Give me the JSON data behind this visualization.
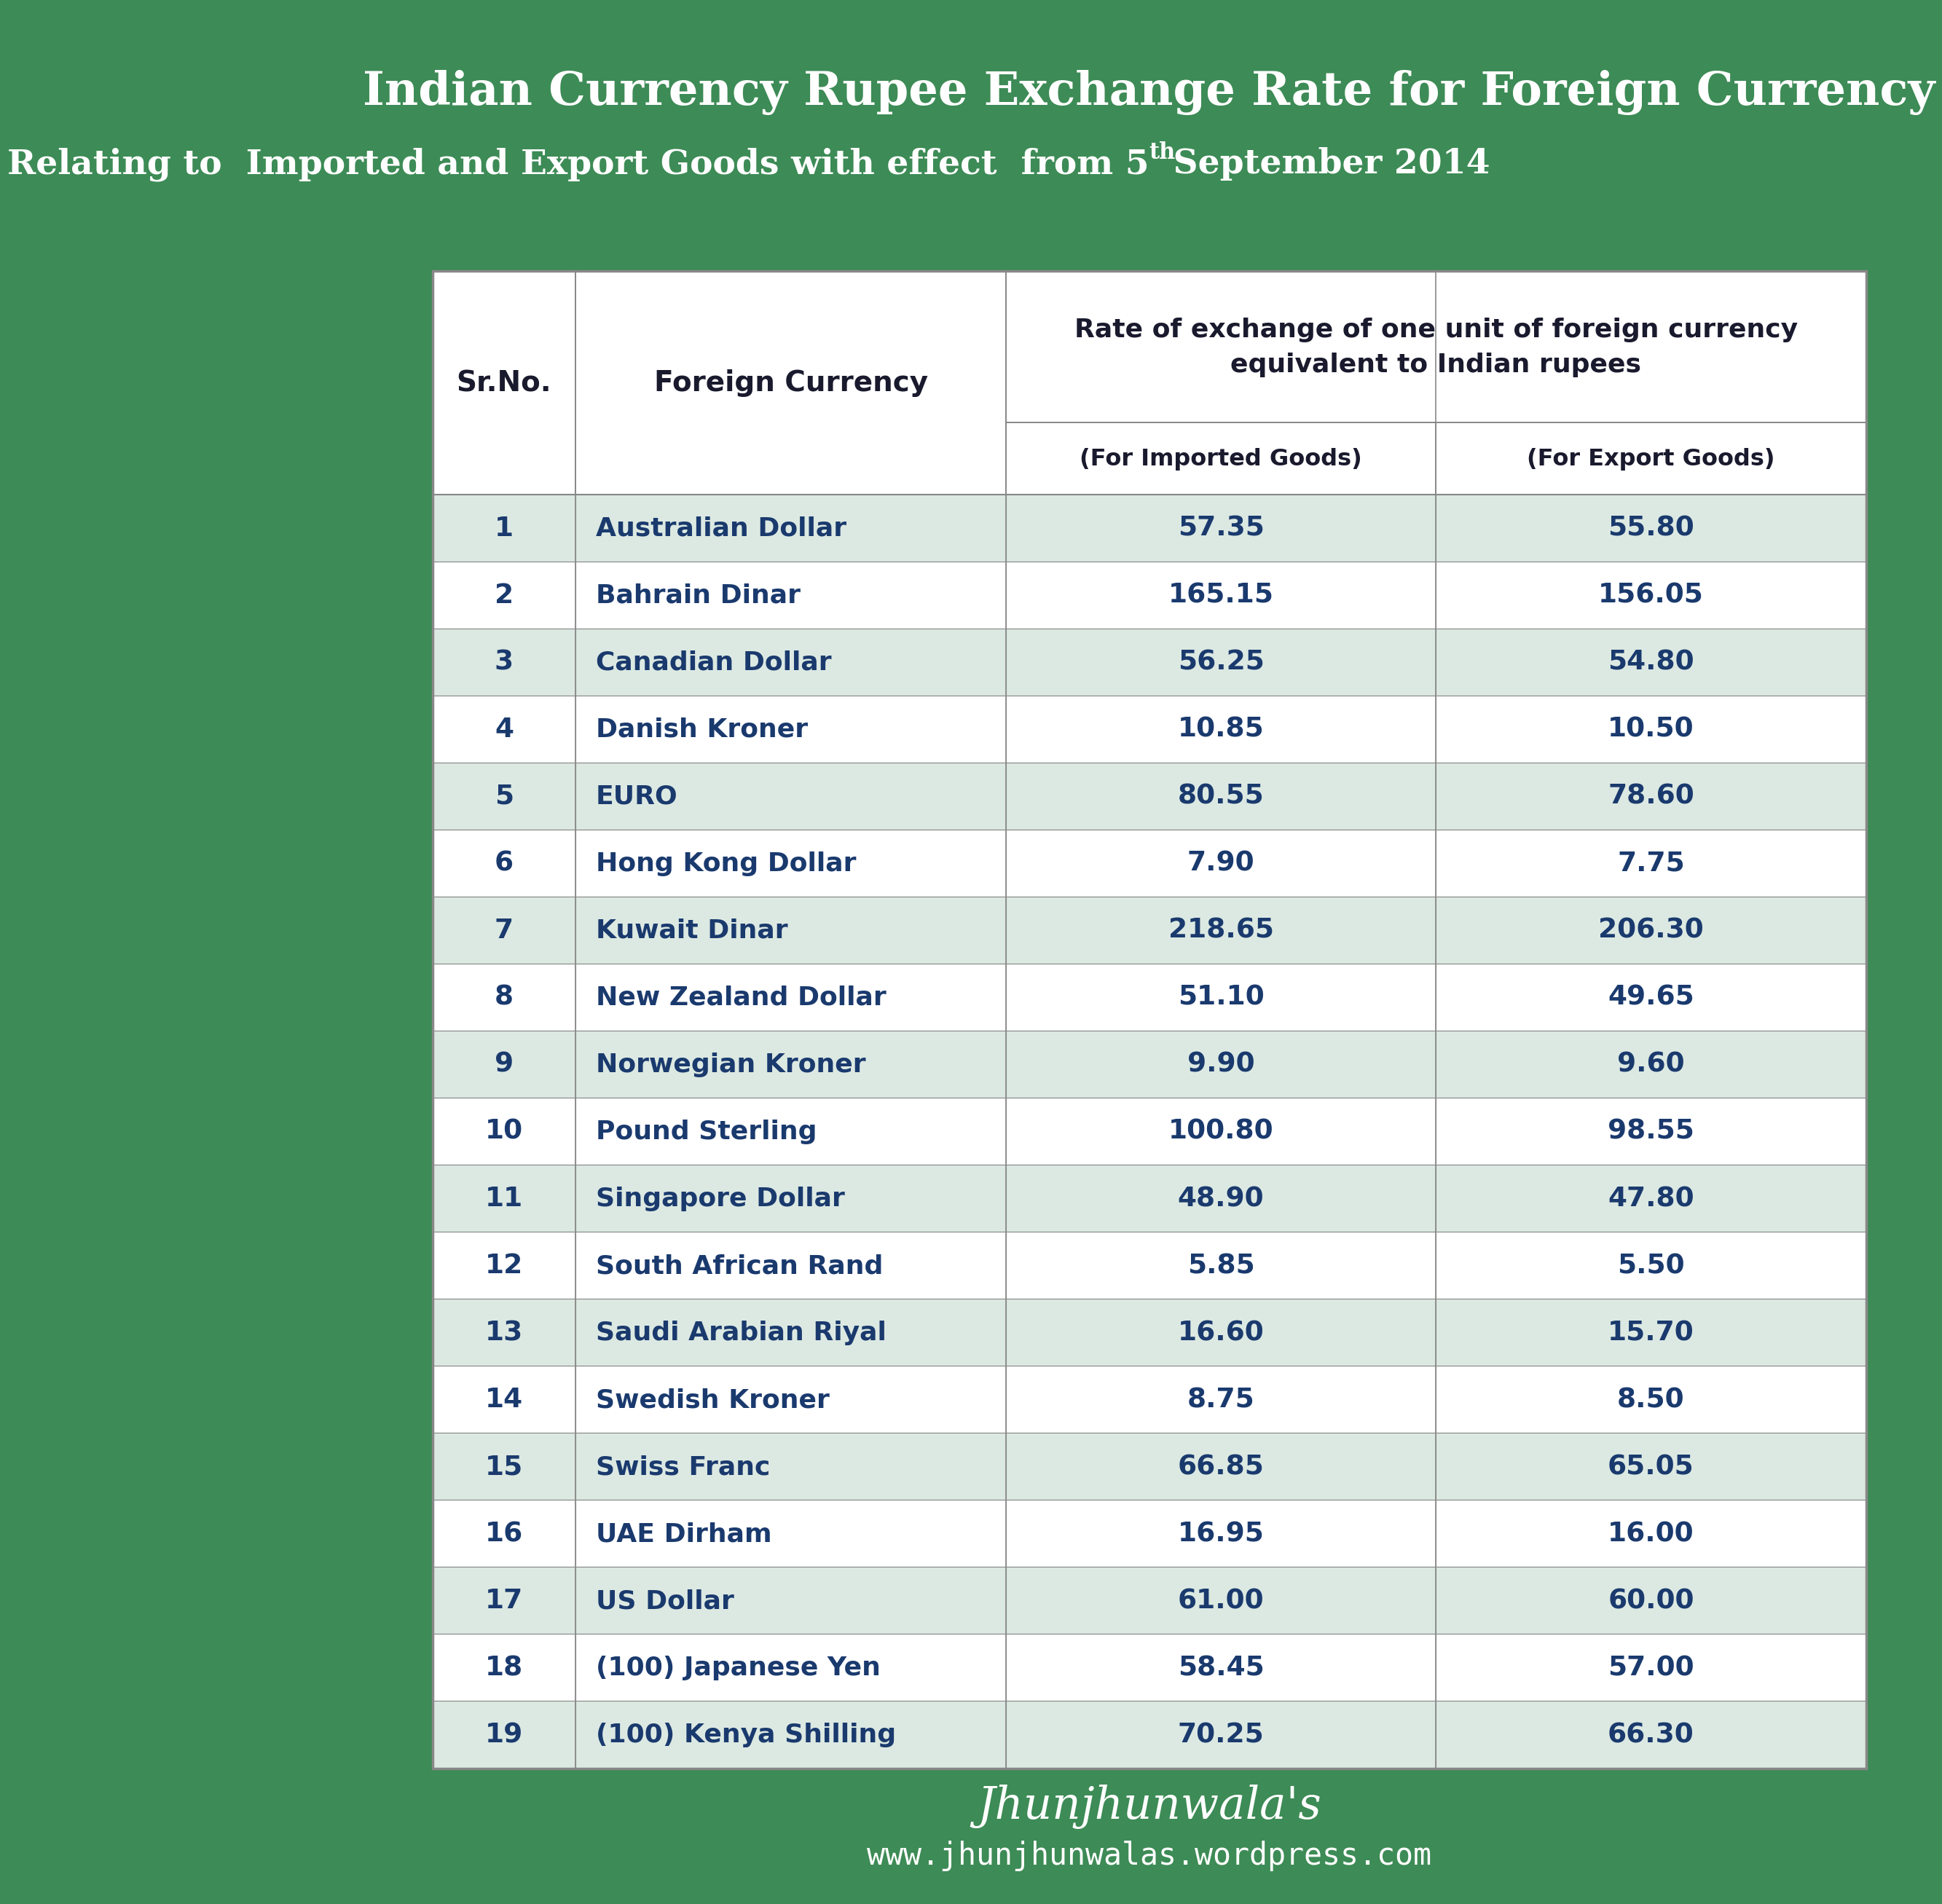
{
  "title_line1": "Indian Currency Rupee Exchange Rate for Foreign Currency",
  "title_line2_pre": "Relating to  Imported and Export Goods with effect  from 5",
  "title_line2_sup": "th",
  "title_line2_post": " September 2014",
  "bg_color": "#3d8b56",
  "table_bg": "#ffffff",
  "row_colors": [
    "#dce9e2",
    "#ffffff"
  ],
  "rows": [
    [
      "1",
      "Australian Dollar",
      "57.35",
      "55.80"
    ],
    [
      "2",
      "Bahrain Dinar",
      "165.15",
      "156.05"
    ],
    [
      "3",
      "Canadian Dollar",
      "56.25",
      "54.80"
    ],
    [
      "4",
      "Danish Kroner",
      "10.85",
      "10.50"
    ],
    [
      "5",
      "EURO",
      "80.55",
      "78.60"
    ],
    [
      "6",
      "Hong Kong Dollar",
      "7.90",
      "7.75"
    ],
    [
      "7",
      "Kuwait Dinar",
      "218.65",
      "206.30"
    ],
    [
      "8",
      "New Zealand Dollar",
      "51.10",
      "49.65"
    ],
    [
      "9",
      "Norwegian Kroner",
      "9.90",
      "9.60"
    ],
    [
      "10",
      "Pound Sterling",
      "100.80",
      "98.55"
    ],
    [
      "11",
      "Singapore Dollar",
      "48.90",
      "47.80"
    ],
    [
      "12",
      "South African Rand",
      "5.85",
      "5.50"
    ],
    [
      "13",
      "Saudi Arabian Riyal",
      "16.60",
      "15.70"
    ],
    [
      "14",
      "Swedish Kroner",
      "8.75",
      "8.50"
    ],
    [
      "15",
      "Swiss Franc",
      "66.85",
      "65.05"
    ],
    [
      "16",
      "UAE Dirham",
      "16.95",
      "16.00"
    ],
    [
      "17",
      "US Dollar",
      "61.00",
      "60.00"
    ],
    [
      "18",
      "(100) Japanese Yen",
      "58.45",
      "57.00"
    ],
    [
      "19",
      "(100) Kenya Shilling",
      "70.25",
      "66.30"
    ]
  ],
  "footer_line1": "Jhunjhunwala's",
  "footer_line2": "www.jhunjhunwalas.wordpress.com",
  "title_color": "#ffffff",
  "header_text_color": "#1a1a2e",
  "data_text_color": "#1a3a6e",
  "footer_color": "#ffffff",
  "border_color": "#888888"
}
